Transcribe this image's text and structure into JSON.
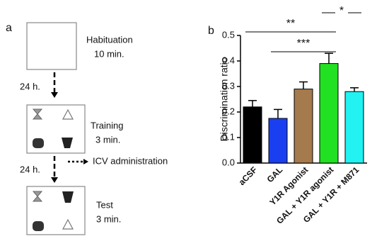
{
  "panels": {
    "a": "a",
    "b": "b"
  },
  "diagram": {
    "habituation": {
      "title": "Habituation",
      "duration": "10 min."
    },
    "interval_1": "24 h.",
    "training": {
      "title": "Training",
      "duration": "3 min."
    },
    "side_step": "ICV administration",
    "interval_2": "24 h.",
    "test": {
      "title": "Test",
      "duration": "3 min."
    }
  },
  "chart_data": {
    "type": "bar",
    "ylabel": "Discrimination ratio",
    "categories": [
      "aCSF",
      "GAL",
      "Y1R Agonist",
      "GAL + Y1R agonist",
      "GAL + Y1R + M871"
    ],
    "values": [
      0.22,
      0.175,
      0.29,
      0.39,
      0.28
    ],
    "errors": [
      0.025,
      0.035,
      0.028,
      0.04,
      0.015
    ],
    "colors": [
      "#000000",
      "#1a3ff0",
      "#a57a4c",
      "#22e022",
      "#22f2f2"
    ],
    "ylim": [
      0,
      0.5
    ],
    "yticks": [
      {
        "value": 0,
        "label": "0.0"
      },
      0.1,
      0.2,
      0.3,
      0.4,
      0.5
    ],
    "significance": [
      {
        "label": "**",
        "from": 0,
        "to": 3
      },
      {
        "label": "***",
        "from": 1,
        "to": 3
      },
      {
        "label": "*",
        "from": 3,
        "to": 4
      }
    ]
  }
}
